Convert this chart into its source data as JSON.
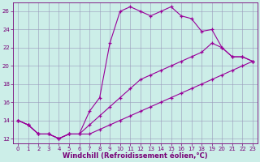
{
  "xlabel": "Windchill (Refroidissement éolien,°C)",
  "background_color": "#cceee8",
  "grid_color": "#9999bb",
  "line_color": "#990099",
  "marker": "+",
  "xlim": [
    -0.5,
    23.5
  ],
  "ylim": [
    11.5,
    27.0
  ],
  "xticks": [
    0,
    1,
    2,
    3,
    4,
    5,
    6,
    7,
    8,
    9,
    10,
    11,
    12,
    13,
    14,
    15,
    16,
    17,
    18,
    19,
    20,
    21,
    22,
    23
  ],
  "yticks": [
    12,
    14,
    16,
    18,
    20,
    22,
    24,
    26
  ],
  "line1": [
    [
      0,
      14.0
    ],
    [
      1,
      13.5
    ],
    [
      2,
      12.5
    ],
    [
      3,
      12.5
    ],
    [
      4,
      12.0
    ],
    [
      5,
      12.5
    ],
    [
      6,
      12.5
    ],
    [
      7,
      15.0
    ],
    [
      8,
      16.5
    ],
    [
      9,
      22.5
    ],
    [
      10,
      26.0
    ],
    [
      11,
      26.5
    ],
    [
      12,
      26.0
    ],
    [
      13,
      25.5
    ],
    [
      14,
      26.0
    ],
    [
      15,
      26.5
    ],
    [
      16,
      25.5
    ],
    [
      17,
      25.2
    ],
    [
      18,
      23.8
    ],
    [
      19,
      24.0
    ],
    [
      20,
      22.0
    ],
    [
      21,
      21.0
    ],
    [
      22,
      21.0
    ],
    [
      23,
      20.5
    ]
  ],
  "line2": [
    [
      0,
      14.0
    ],
    [
      1,
      13.5
    ],
    [
      2,
      12.5
    ],
    [
      3,
      12.5
    ],
    [
      4,
      12.0
    ],
    [
      5,
      12.5
    ],
    [
      6,
      12.5
    ],
    [
      7,
      13.5
    ],
    [
      8,
      14.5
    ],
    [
      9,
      15.5
    ],
    [
      10,
      16.5
    ],
    [
      11,
      17.5
    ],
    [
      12,
      18.5
    ],
    [
      13,
      19.0
    ],
    [
      14,
      19.5
    ],
    [
      15,
      20.0
    ],
    [
      16,
      20.5
    ],
    [
      17,
      21.0
    ],
    [
      18,
      21.5
    ],
    [
      19,
      22.5
    ],
    [
      20,
      22.0
    ],
    [
      21,
      21.0
    ],
    [
      22,
      21.0
    ],
    [
      23,
      20.5
    ]
  ],
  "line3": [
    [
      0,
      14.0
    ],
    [
      1,
      13.5
    ],
    [
      2,
      12.5
    ],
    [
      3,
      12.5
    ],
    [
      4,
      12.0
    ],
    [
      5,
      12.5
    ],
    [
      6,
      12.5
    ],
    [
      7,
      12.5
    ],
    [
      8,
      13.0
    ],
    [
      9,
      13.5
    ],
    [
      10,
      14.0
    ],
    [
      11,
      14.5
    ],
    [
      12,
      15.0
    ],
    [
      13,
      15.5
    ],
    [
      14,
      16.0
    ],
    [
      15,
      16.5
    ],
    [
      16,
      17.0
    ],
    [
      17,
      17.5
    ],
    [
      18,
      18.0
    ],
    [
      19,
      18.5
    ],
    [
      20,
      19.0
    ],
    [
      21,
      19.5
    ],
    [
      22,
      20.0
    ],
    [
      23,
      20.5
    ]
  ],
  "tick_fontsize": 5.0,
  "label_fontsize": 6.0,
  "tick_color": "#770077",
  "label_color": "#770077"
}
